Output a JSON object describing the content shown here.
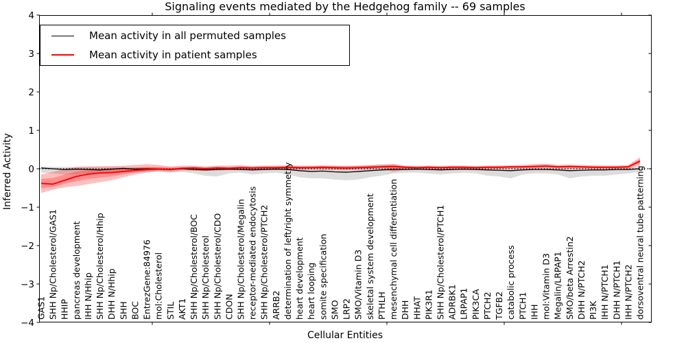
{
  "title": "Signaling events mediated by the Hedgehog family -- 69 samples",
  "legend": {
    "items": [
      {
        "label": "Mean activity in all permuted samples",
        "color": "#000000"
      },
      {
        "label": "Mean activity in patient samples",
        "color": "#ff0000"
      }
    ]
  },
  "colors": {
    "permuted_line": "#000000",
    "patient_line": "#ff0000",
    "permuted_band": "#808080",
    "patient_band": "#ff0000",
    "zero_line": "#000000"
  },
  "chart_data": {
    "type": "line",
    "title": "Signaling events mediated by the Hedgehog family -- 69 samples",
    "xlabel": "Cellular Entities",
    "ylabel": "Inferred Activity",
    "ylim": [
      -4,
      4
    ],
    "yticks": [
      4,
      3,
      2,
      1,
      0,
      -1,
      -2,
      -3,
      -4
    ],
    "grid": false,
    "legend_position": "upper left",
    "zero_reference_line": true,
    "categories": [
      "GAS1",
      "SHH Np/Cholesterol/GAS1",
      "HHIP",
      "pancreas development",
      "IHH N/Hhip",
      "SHH Np/Cholesterol/Hhip",
      "DHH N/Hhip",
      "SHH",
      "BOC",
      "EntrezGene:84976",
      "mol:Cholesterol",
      "STIL",
      "AKT1",
      "SHH Np/Cholesterol/BOC",
      "SHH Np/Cholesterol",
      "SHH Np/Cholesterol/CDO",
      "CDON",
      "SHH Np/Cholesterol/Megalin",
      "receptor-mediated endocytosis",
      "SHH Np/Cholesterol/PTCH2",
      "ARRB2",
      "determination of left/right symmetry",
      "heart development",
      "heart looping",
      "somite specification",
      "SMO",
      "LRP2",
      "SMO/Vitamin D3",
      "skeletal system development",
      "PTHLH",
      "mesenchymal cell differentiation",
      "DHH",
      "HHAT",
      "PIK3R1",
      "SHH Np/Cholesterol/PTCH1",
      "ADRBK1",
      "LRPAP1",
      "PIK3CA",
      "PTCH2",
      "TGFB2",
      "catabolic process",
      "PTCH1",
      "IHH",
      "mol:Vitamin D3",
      "Megalin/LRPAP1",
      "SMO/beta Arrestin2",
      "DHH N/PTCH2",
      "PI3K",
      "IHH N/PTCH1",
      "DHH N/PTCH1",
      "IHH N/PTCH2",
      "dorsoventral neural tube patterning"
    ],
    "series": [
      {
        "name": "Mean activity in all permuted samples",
        "color": "#000000",
        "values": [
          0.02,
          0.0,
          -0.02,
          -0.01,
          -0.02,
          -0.03,
          -0.01,
          0.01,
          -0.01,
          0.0,
          -0.01,
          -0.02,
          0.0,
          -0.02,
          -0.03,
          -0.02,
          -0.01,
          -0.02,
          -0.03,
          -0.02,
          -0.01,
          -0.02,
          -0.05,
          -0.07,
          -0.06,
          -0.08,
          -0.09,
          -0.07,
          -0.05,
          -0.03,
          -0.02,
          -0.02,
          -0.01,
          -0.02,
          -0.03,
          -0.02,
          -0.01,
          -0.02,
          -0.03,
          -0.04,
          -0.05,
          -0.03,
          -0.02,
          -0.02,
          -0.03,
          -0.05,
          -0.04,
          -0.03,
          -0.03,
          -0.02,
          -0.02,
          0.0
        ]
      },
      {
        "name": "Mean activity in patient samples",
        "color": "#ff0000",
        "values": [
          -0.38,
          -0.4,
          -0.3,
          -0.2,
          -0.14,
          -0.11,
          -0.1,
          -0.07,
          -0.04,
          -0.02,
          -0.01,
          -0.02,
          0.01,
          0.02,
          0.0,
          0.02,
          0.01,
          0.03,
          0.02,
          0.03,
          0.03,
          0.04,
          0.03,
          0.03,
          0.04,
          0.03,
          0.02,
          0.03,
          0.04,
          0.05,
          0.06,
          0.04,
          0.03,
          0.04,
          0.03,
          0.04,
          0.04,
          0.03,
          0.04,
          0.04,
          0.05,
          0.05,
          0.06,
          0.07,
          0.05,
          0.06,
          0.05,
          0.04,
          0.04,
          0.04,
          0.05,
          0.2
        ]
      }
    ],
    "bands": [
      {
        "name": "permuted-samples-range",
        "color": "#808080",
        "opacity": 0.28,
        "lo": [
          -0.1,
          -0.12,
          -0.15,
          -0.15,
          -0.12,
          -0.12,
          -0.1,
          -0.1,
          -0.1,
          -0.08,
          -0.08,
          -0.1,
          -0.08,
          -0.12,
          -0.18,
          -0.2,
          -0.12,
          -0.1,
          -0.15,
          -0.12,
          -0.1,
          -0.15,
          -0.22,
          -0.25,
          -0.25,
          -0.28,
          -0.3,
          -0.28,
          -0.22,
          -0.18,
          -0.12,
          -0.1,
          -0.1,
          -0.12,
          -0.15,
          -0.12,
          -0.1,
          -0.12,
          -0.18,
          -0.2,
          -0.25,
          -0.15,
          -0.12,
          -0.12,
          -0.15,
          -0.25,
          -0.2,
          -0.18,
          -0.18,
          -0.15,
          -0.12,
          -0.08
        ],
        "hi": [
          0.06,
          0.05,
          0.05,
          0.05,
          0.05,
          0.04,
          0.05,
          0.05,
          0.04,
          0.04,
          0.04,
          0.04,
          0.04,
          0.04,
          0.04,
          0.05,
          0.04,
          0.04,
          0.04,
          0.05,
          0.05,
          0.05,
          0.05,
          0.06,
          0.06,
          0.06,
          0.07,
          0.08,
          0.1,
          0.12,
          0.1,
          0.06,
          0.05,
          0.05,
          0.05,
          0.05,
          0.05,
          0.05,
          0.05,
          0.06,
          0.06,
          0.06,
          0.06,
          0.06,
          0.06,
          0.06,
          0.06,
          0.05,
          0.05,
          0.05,
          0.05,
          0.05
        ]
      },
      {
        "name": "patient-samples-range",
        "color": "#ff0000",
        "opacity": 0.25,
        "lo": [
          -0.63,
          -0.55,
          -0.48,
          -0.45,
          -0.4,
          -0.35,
          -0.3,
          -0.22,
          -0.15,
          -0.1,
          -0.06,
          -0.08,
          -0.05,
          -0.05,
          -0.06,
          -0.04,
          -0.04,
          -0.03,
          -0.04,
          -0.02,
          -0.03,
          -0.02,
          -0.03,
          -0.02,
          -0.02,
          -0.03,
          -0.04,
          -0.02,
          -0.02,
          0.0,
          -0.08,
          -0.02,
          -0.02,
          -0.01,
          -0.02,
          -0.01,
          -0.01,
          -0.02,
          -0.01,
          -0.01,
          0.0,
          0.0,
          0.0,
          0.01,
          0.0,
          0.0,
          0.0,
          0.0,
          0.0,
          0.0,
          0.0,
          0.08
        ],
        "hi": [
          -0.15,
          -0.08,
          0.0,
          0.05,
          0.06,
          0.07,
          0.07,
          0.08,
          0.1,
          0.12,
          0.1,
          0.06,
          0.08,
          0.08,
          0.06,
          0.08,
          0.08,
          0.09,
          0.07,
          0.08,
          0.08,
          0.09,
          0.08,
          0.08,
          0.09,
          0.08,
          0.08,
          0.08,
          0.09,
          0.1,
          0.13,
          0.08,
          0.07,
          0.08,
          0.07,
          0.08,
          0.08,
          0.07,
          0.08,
          0.08,
          0.09,
          0.1,
          0.12,
          0.13,
          0.1,
          0.11,
          0.1,
          0.09,
          0.08,
          0.08,
          0.1,
          0.3
        ]
      }
    ]
  }
}
